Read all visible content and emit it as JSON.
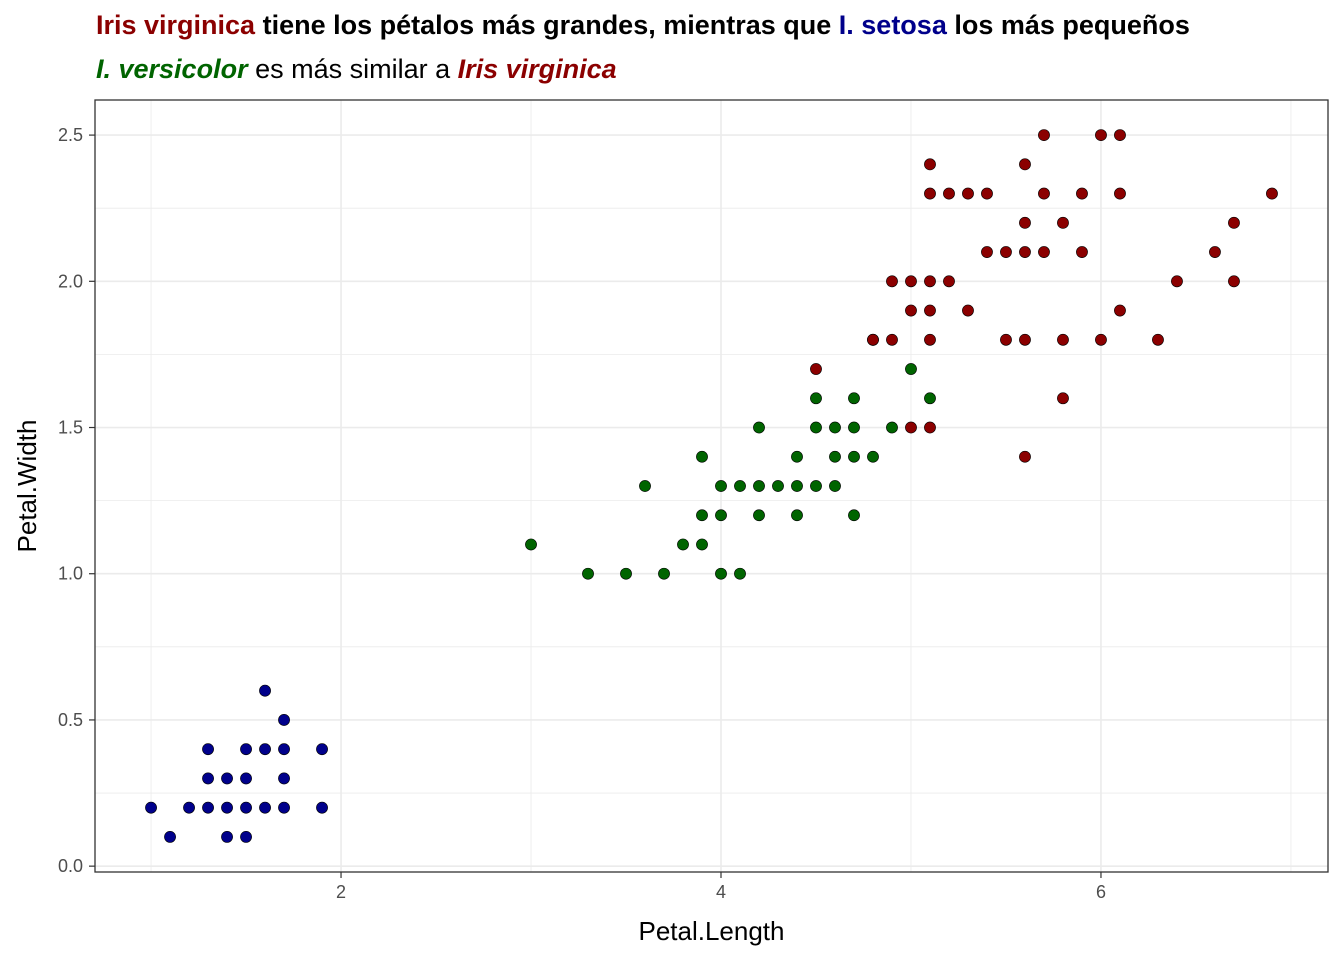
{
  "title": {
    "line1": [
      {
        "text": "Iris virginica",
        "color": "#8b0000"
      },
      {
        "text": " tiene los pétalos más grandes, mientras que ",
        "color": "#000000"
      },
      {
        "text": "I. setosa",
        "color": "#00008b"
      },
      {
        "text": " los más pequeños",
        "color": "#000000"
      }
    ],
    "line2": [
      {
        "text": "I. versicolor",
        "color": "#006400"
      },
      {
        "text": " es más similar a ",
        "color": "#000000"
      },
      {
        "text": "Iris virginica",
        "color": "#8b0000"
      }
    ]
  },
  "chart_data": {
    "type": "scatter",
    "xlabel": "Petal.Length",
    "ylabel": "Petal.Width",
    "xlim": [
      0.705,
      7.195
    ],
    "ylim": [
      -0.02,
      2.62
    ],
    "x_ticks": [
      2,
      4,
      6
    ],
    "x_tick_labels": [
      "2",
      "4",
      "6"
    ],
    "y_ticks": [
      0,
      0.5,
      1,
      1.5,
      2,
      2.5
    ],
    "y_tick_labels": [
      "0.0",
      "0.5",
      "1.0",
      "1.5",
      "2.0",
      "2.5"
    ],
    "grid": true,
    "legend": "none",
    "series": [
      {
        "color": "#00008b",
        "points": [
          [
            1.0,
            0.2
          ],
          [
            1.1,
            0.1
          ],
          [
            1.2,
            0.2
          ],
          [
            1.3,
            0.2
          ],
          [
            1.3,
            0.3
          ],
          [
            1.3,
            0.4
          ],
          [
            1.4,
            0.1
          ],
          [
            1.4,
            0.2
          ],
          [
            1.4,
            0.3
          ],
          [
            1.5,
            0.1
          ],
          [
            1.5,
            0.2
          ],
          [
            1.5,
            0.3
          ],
          [
            1.5,
            0.4
          ],
          [
            1.6,
            0.2
          ],
          [
            1.6,
            0.4
          ],
          [
            1.6,
            0.6
          ],
          [
            1.7,
            0.2
          ],
          [
            1.7,
            0.3
          ],
          [
            1.7,
            0.4
          ],
          [
            1.7,
            0.5
          ],
          [
            1.9,
            0.2
          ],
          [
            1.9,
            0.4
          ]
        ]
      },
      {
        "color": "#006400",
        "points": [
          [
            3.0,
            1.1
          ],
          [
            3.3,
            1.0
          ],
          [
            3.5,
            1.0
          ],
          [
            3.6,
            1.3
          ],
          [
            3.7,
            1.0
          ],
          [
            3.8,
            1.1
          ],
          [
            3.9,
            1.1
          ],
          [
            3.9,
            1.2
          ],
          [
            3.9,
            1.4
          ],
          [
            4.0,
            1.0
          ],
          [
            4.0,
            1.2
          ],
          [
            4.0,
            1.3
          ],
          [
            4.1,
            1.0
          ],
          [
            4.1,
            1.3
          ],
          [
            4.2,
            1.2
          ],
          [
            4.2,
            1.3
          ],
          [
            4.2,
            1.5
          ],
          [
            4.3,
            1.3
          ],
          [
            4.4,
            1.2
          ],
          [
            4.4,
            1.3
          ],
          [
            4.4,
            1.4
          ],
          [
            4.5,
            1.3
          ],
          [
            4.5,
            1.5
          ],
          [
            4.5,
            1.6
          ],
          [
            4.6,
            1.3
          ],
          [
            4.6,
            1.4
          ],
          [
            4.6,
            1.5
          ],
          [
            4.7,
            1.2
          ],
          [
            4.7,
            1.4
          ],
          [
            4.7,
            1.5
          ],
          [
            4.7,
            1.6
          ],
          [
            4.8,
            1.4
          ],
          [
            4.8,
            1.8
          ],
          [
            4.9,
            1.5
          ],
          [
            5.0,
            1.7
          ],
          [
            5.1,
            1.6
          ]
        ]
      },
      {
        "color": "#8b0000",
        "points": [
          [
            4.5,
            1.7
          ],
          [
            4.8,
            1.8
          ],
          [
            4.9,
            1.8
          ],
          [
            4.9,
            2.0
          ],
          [
            5.0,
            1.5
          ],
          [
            5.0,
            1.9
          ],
          [
            5.0,
            2.0
          ],
          [
            5.1,
            1.5
          ],
          [
            5.1,
            1.8
          ],
          [
            5.1,
            1.9
          ],
          [
            5.1,
            2.0
          ],
          [
            5.1,
            2.3
          ],
          [
            5.1,
            2.4
          ],
          [
            5.2,
            2.0
          ],
          [
            5.2,
            2.3
          ],
          [
            5.3,
            1.9
          ],
          [
            5.3,
            2.3
          ],
          [
            5.4,
            2.1
          ],
          [
            5.4,
            2.3
          ],
          [
            5.5,
            1.8
          ],
          [
            5.5,
            2.1
          ],
          [
            5.6,
            1.4
          ],
          [
            5.6,
            1.8
          ],
          [
            5.6,
            2.1
          ],
          [
            5.6,
            2.2
          ],
          [
            5.6,
            2.4
          ],
          [
            5.7,
            2.1
          ],
          [
            5.7,
            2.3
          ],
          [
            5.7,
            2.5
          ],
          [
            5.8,
            1.6
          ],
          [
            5.8,
            1.8
          ],
          [
            5.8,
            2.2
          ],
          [
            5.9,
            2.1
          ],
          [
            5.9,
            2.3
          ],
          [
            6.0,
            1.8
          ],
          [
            6.0,
            2.5
          ],
          [
            6.1,
            1.9
          ],
          [
            6.1,
            2.3
          ],
          [
            6.1,
            2.5
          ],
          [
            6.3,
            1.8
          ],
          [
            6.4,
            2.0
          ],
          [
            6.6,
            2.1
          ],
          [
            6.7,
            2.0
          ],
          [
            6.7,
            2.2
          ],
          [
            6.9,
            2.3
          ]
        ]
      }
    ]
  }
}
